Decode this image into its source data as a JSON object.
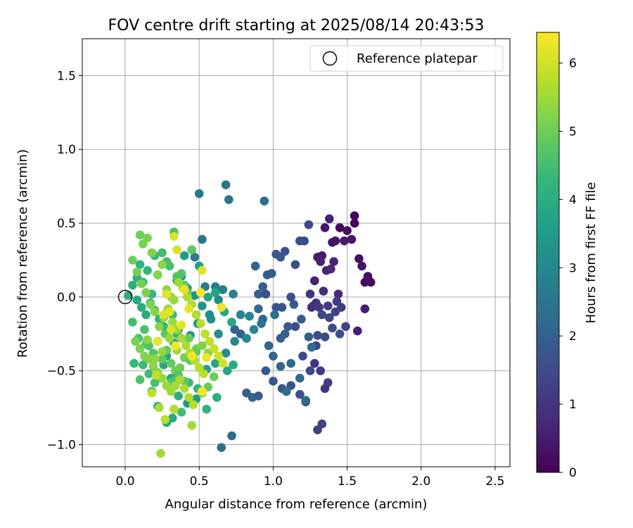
{
  "chart_data": {
    "type": "scatter",
    "title": "FOV centre drift starting at 2025/08/14 20:43:53",
    "xlabel": "Angular distance from reference (arcmin)",
    "ylabel": "Rotation from reference (arcmin)",
    "xlim": [
      -0.29,
      2.6
    ],
    "ylim": [
      -1.15,
      1.75
    ],
    "xticks": [
      0.0,
      0.5,
      1.0,
      1.5,
      2.0,
      2.5
    ],
    "xtick_labels": [
      "0.0",
      "0.5",
      "1.0",
      "1.5",
      "2.0",
      "2.5"
    ],
    "yticks": [
      -1.0,
      -0.5,
      0.0,
      0.5,
      1.0,
      1.5
    ],
    "ytick_labels": [
      "−1.0",
      "−0.5",
      "0.0",
      "0.5",
      "1.0",
      "1.5"
    ],
    "grid": true,
    "legend": {
      "placement": "top-right",
      "entries": [
        "Reference platepar"
      ]
    },
    "reference_point": {
      "x": 0.0,
      "y": 0.0
    },
    "colorbar": {
      "label": "Hours from first FF file",
      "colormap": "viridis",
      "range": [
        0,
        6.45
      ],
      "ticks": [
        0,
        1,
        2,
        3,
        4,
        5,
        6
      ],
      "tick_labels": [
        "0",
        "1",
        "2",
        "3",
        "4",
        "5",
        "6"
      ],
      "stops": [
        "#440154",
        "#482878",
        "#3e4989",
        "#31688e",
        "#26828e",
        "#1f9e89",
        "#35b779",
        "#6ece58",
        "#b5de2b",
        "#fde725"
      ]
    },
    "series": [
      {
        "x": [
          1.55,
          1.62,
          1.66,
          1.58,
          1.64,
          1.6,
          1.55,
          1.5,
          1.53,
          1.48,
          1.62,
          1.57,
          1.45,
          1.42,
          1.4,
          1.38,
          1.35,
          1.33,
          1.3,
          1.28,
          1.32,
          1.36,
          1.41,
          1.44,
          1.39,
          1.34,
          1.29,
          1.25,
          1.27,
          1.31,
          1.37,
          1.43,
          1.46,
          1.49,
          1.42,
          1.38,
          1.33,
          1.3,
          1.35,
          1.4,
          1.45,
          1.35,
          1.28,
          1.32,
          1.37,
          1.3,
          1.33,
          1.29,
          1.22,
          1.26
        ],
        "y": [
          0.55,
          0.1,
          0.1,
          0.26,
          0.14,
          0.21,
          0.5,
          0.45,
          0.39,
          0.38,
          -0.08,
          -0.23,
          0.47,
          0.38,
          0.37,
          0.53,
          0.47,
          0.28,
          0.27,
          0.11,
          0.24,
          0.18,
          0.24,
          0.02,
          0.19,
          0.04,
          -0.04,
          0.02,
          -0.06,
          -0.07,
          -0.06,
          -0.03,
          -0.07,
          -0.2,
          -0.1,
          -0.14,
          -0.12,
          -0.26,
          -0.27,
          -0.21,
          -0.25,
          -0.62,
          -0.45,
          -0.5,
          -0.58,
          -0.9,
          -0.86,
          -0.33,
          -0.71,
          -0.07
        ],
        "hours": [
          0.05,
          0.15,
          0.2,
          0.25,
          0.3,
          0.35,
          0.12,
          0.18,
          0.4,
          0.45,
          0.5,
          0.55,
          0.1,
          0.3,
          0.35,
          0.6,
          0.4,
          0.45,
          0.5,
          0.55,
          0.6,
          0.65,
          0.7,
          0.75,
          0.8,
          0.85,
          0.9,
          0.95,
          1.0,
          1.05,
          1.1,
          1.15,
          1.2,
          1.25,
          1.3,
          1.35,
          1.4,
          1.45,
          1.5,
          1.55,
          1.6,
          1.0,
          1.05,
          1.1,
          1.15,
          1.2,
          1.25,
          1.3,
          1.35,
          0.9
        ]
      },
      {
        "x": [
          1.24,
          1.21,
          1.18,
          1.15,
          1.12,
          1.08,
          1.05,
          1.02,
          0.99,
          0.96,
          0.93,
          0.9,
          0.88,
          0.95,
          1.02,
          1.06,
          1.1,
          1.14,
          1.19,
          1.24,
          1.08,
          1.05,
          1.0,
          0.97,
          0.93,
          0.9,
          1.15,
          1.2,
          1.25,
          1.18,
          1.12,
          1.06,
          1.0,
          0.95,
          0.9,
          0.86,
          0.82,
          0.78,
          0.74,
          1.05,
          1.12,
          1.18,
          1.22,
          1.26,
          1.09,
          1.01,
          0.92
        ],
        "y": [
          0.49,
          0.38,
          0.38,
          0.22,
          0.0,
          0.31,
          0.27,
          0.29,
          0.16,
          0.15,
          0.07,
          0.02,
          0.21,
          0.02,
          -0.07,
          -0.07,
          -0.2,
          -0.05,
          -0.15,
          -0.27,
          -0.25,
          -0.28,
          -0.4,
          -0.33,
          -0.15,
          -0.08,
          -0.2,
          -0.4,
          -0.5,
          -0.66,
          -0.6,
          -0.62,
          -0.57,
          -0.5,
          -0.67,
          -0.68,
          -0.65,
          -0.25,
          -0.22,
          -0.47,
          -0.45,
          -0.55,
          -0.7,
          -0.34,
          -0.64,
          -0.12,
          -0.18
        ],
        "hours": [
          1.4,
          1.45,
          1.5,
          1.55,
          1.6,
          1.65,
          1.7,
          1.75,
          1.8,
          1.85,
          1.9,
          1.95,
          2.0,
          1.6,
          1.65,
          1.7,
          1.75,
          1.8,
          1.85,
          1.9,
          1.95,
          2.0,
          2.05,
          2.1,
          2.15,
          2.2,
          1.55,
          1.5,
          1.45,
          1.6,
          1.65,
          1.7,
          1.75,
          1.8,
          1.85,
          1.9,
          1.95,
          2.0,
          2.05,
          2.1,
          2.15,
          2.2,
          2.25,
          2.3,
          2.35,
          2.4,
          2.45
        ]
      },
      {
        "x": [
          0.94,
          0.68,
          0.7,
          0.5,
          0.52,
          0.47,
          0.54,
          0.61,
          0.66,
          0.73,
          0.78,
          0.84,
          0.87,
          0.82,
          0.74,
          0.68,
          0.63,
          0.58,
          0.52,
          0.47,
          0.42,
          0.38,
          0.35,
          0.4,
          0.45,
          0.5,
          0.56,
          0.61,
          0.67,
          0.72,
          0.63,
          0.57,
          0.49,
          0.44,
          0.36,
          0.33,
          0.28,
          0.26,
          0.31,
          0.36,
          0.42,
          0.48,
          0.55,
          0.61,
          0.69,
          0.73,
          0.62,
          0.55,
          0.49,
          0.43,
          0.38
        ],
        "y": [
          0.65,
          0.76,
          0.66,
          0.7,
          0.39,
          0.27,
          0.07,
          0.07,
          0.05,
          0.02,
          -0.12,
          -0.13,
          -0.22,
          -0.28,
          -0.3,
          -0.38,
          -0.25,
          -0.15,
          -0.06,
          0.01,
          0.06,
          0.14,
          0.11,
          0.28,
          0.32,
          0.21,
          0.0,
          0.03,
          -0.1,
          -0.17,
          -0.02,
          -0.12,
          -0.18,
          -0.26,
          -0.22,
          -0.31,
          -0.4,
          -0.46,
          -0.55,
          -0.67,
          -0.72,
          -0.69,
          -0.49,
          -0.45,
          -0.5,
          -0.46,
          -0.68,
          -0.76,
          -0.62,
          -0.58,
          -0.78
        ],
        "hours": [
          2.3,
          2.45,
          2.5,
          2.55,
          2.6,
          2.65,
          2.7,
          2.75,
          2.8,
          2.85,
          2.9,
          2.95,
          3.0,
          3.05,
          3.1,
          3.15,
          3.2,
          3.25,
          3.3,
          3.35,
          3.4,
          3.45,
          3.5,
          3.55,
          3.6,
          3.65,
          3.7,
          3.75,
          3.8,
          3.85,
          3.1,
          3.2,
          3.3,
          3.4,
          3.5,
          3.6,
          3.7,
          3.8,
          3.9,
          4.0,
          3.45,
          3.55,
          3.65,
          3.75,
          3.85,
          3.95,
          4.05,
          4.15,
          4.25,
          4.35,
          4.45
        ]
      },
      {
        "x": [
          0.65,
          0.72,
          0.02,
          0.05,
          0.08,
          0.1,
          0.12,
          0.15,
          0.18,
          0.2,
          0.22,
          0.25,
          0.28,
          0.3,
          0.33,
          0.35,
          0.38,
          0.4,
          0.42,
          0.45,
          0.08,
          0.11,
          0.14,
          0.17,
          0.2,
          0.23,
          0.26,
          0.29,
          0.32,
          0.35,
          0.05,
          0.09,
          0.13,
          0.16,
          0.19,
          0.22,
          0.25,
          0.28,
          0.31,
          0.34,
          0.37,
          0.4,
          0.44,
          0.48,
          0.52,
          0.56,
          0.12,
          0.16,
          0.2,
          0.24,
          0.28,
          0.32,
          0.36,
          0.4,
          0.44,
          0.48,
          0.52,
          0.56,
          0.6,
          0.28,
          0.32,
          0.22,
          0.1,
          0.06,
          0.18,
          0.14,
          0.27,
          0.35,
          0.43
        ],
        "y": [
          -1.02,
          -0.94,
          0.01,
          0.08,
          0.13,
          0.22,
          0.1,
          0.18,
          0.02,
          0.28,
          0.15,
          0.3,
          0.24,
          0.21,
          0.44,
          0.14,
          0.16,
          0.08,
          0.03,
          0.32,
          -0.02,
          -0.07,
          -0.12,
          -0.04,
          -0.09,
          -0.15,
          -0.2,
          -0.08,
          -0.12,
          -0.25,
          -0.17,
          -0.28,
          -0.22,
          -0.33,
          -0.38,
          -0.3,
          -0.42,
          -0.36,
          -0.45,
          -0.5,
          -0.48,
          -0.41,
          -0.4,
          -0.35,
          -0.33,
          -0.38,
          -0.46,
          -0.52,
          -0.58,
          -0.55,
          -0.6,
          -0.57,
          -0.53,
          -0.57,
          -0.43,
          -0.37,
          -0.65,
          -0.61,
          -0.54,
          -0.85,
          -0.82,
          -0.74,
          -0.56,
          -0.45,
          -0.64,
          -0.32,
          -0.25,
          -0.22,
          -0.28
        ],
        "hours": [
          2.3,
          2.35,
          4.0,
          4.05,
          4.1,
          4.15,
          4.2,
          4.25,
          4.3,
          4.35,
          4.4,
          4.45,
          4.5,
          4.55,
          4.6,
          4.65,
          4.7,
          4.75,
          4.8,
          4.85,
          3.9,
          3.95,
          4.0,
          4.05,
          4.1,
          4.15,
          4.2,
          4.25,
          4.3,
          4.35,
          4.5,
          4.55,
          4.6,
          4.65,
          4.7,
          4.75,
          4.8,
          4.85,
          4.9,
          4.95,
          5.0,
          5.05,
          5.1,
          5.15,
          5.2,
          5.25,
          4.4,
          4.45,
          4.5,
          4.55,
          4.6,
          4.65,
          4.7,
          4.75,
          4.8,
          4.85,
          4.9,
          4.95,
          5.0,
          3.8,
          3.9,
          4.0,
          4.6,
          4.3,
          4.2,
          4.7,
          4.8,
          4.9,
          5.0
        ]
      },
      {
        "x": [
          0.1,
          0.12,
          0.15,
          0.18,
          0.22,
          0.25,
          0.28,
          0.31,
          0.33,
          0.36,
          0.39,
          0.42,
          0.45,
          0.48,
          0.51,
          0.54,
          0.57,
          0.6,
          0.63,
          0.66,
          0.05,
          0.08,
          0.11,
          0.14,
          0.17,
          0.2,
          0.23,
          0.26,
          0.29,
          0.32,
          0.35,
          0.38,
          0.41,
          0.44,
          0.47,
          0.5,
          0.53,
          0.07,
          0.1,
          0.13,
          0.16,
          0.19,
          0.22,
          0.25,
          0.28,
          0.31,
          0.34,
          0.37,
          0.4,
          0.43,
          0.46,
          0.15,
          0.2,
          0.25,
          0.3,
          0.35,
          0.23,
          0.45,
          0.52,
          0.33,
          0.27,
          0.18,
          0.21,
          0.24
        ],
        "y": [
          0.42,
          0.36,
          0.4,
          0.3,
          0.15,
          0.22,
          0.05,
          0.0,
          -0.02,
          0.1,
          0.06,
          0.0,
          -0.05,
          -0.12,
          -0.18,
          -0.25,
          -0.3,
          -0.35,
          -0.4,
          -0.45,
          0.25,
          0.17,
          0.09,
          0.03,
          -0.05,
          -0.1,
          -0.2,
          -0.14,
          -0.08,
          -0.17,
          -0.22,
          -0.28,
          -0.33,
          -0.38,
          -0.43,
          -0.48,
          -0.52,
          -0.3,
          -0.35,
          -0.4,
          -0.42,
          -0.47,
          -0.51,
          -0.55,
          -0.6,
          -0.64,
          -0.6,
          -0.56,
          -0.62,
          -0.68,
          -0.73,
          -0.29,
          -0.42,
          -0.37,
          -0.28,
          -0.36,
          -0.75,
          -0.87,
          -0.64,
          -0.76,
          -0.83,
          -0.65,
          -0.53,
          -1.06
        ],
        "hours": [
          5.0,
          5.1,
          5.15,
          5.2,
          5.25,
          5.3,
          5.35,
          5.4,
          5.45,
          5.5,
          5.55,
          5.6,
          5.65,
          5.7,
          5.75,
          5.8,
          5.85,
          5.9,
          5.95,
          6.0,
          5.0,
          5.05,
          5.1,
          5.15,
          5.2,
          5.25,
          5.3,
          5.35,
          5.4,
          5.45,
          5.5,
          5.55,
          5.6,
          5.65,
          5.7,
          5.75,
          5.8,
          5.1,
          5.15,
          5.2,
          5.25,
          5.3,
          5.35,
          5.4,
          5.45,
          5.5,
          5.55,
          5.6,
          5.65,
          5.7,
          5.75,
          5.3,
          5.35,
          5.4,
          5.45,
          5.5,
          5.6,
          5.55,
          5.65,
          5.7,
          5.75,
          5.8,
          5.85,
          5.5
        ]
      },
      {
        "x": [
          0.33,
          0.52,
          0.4,
          0.65,
          0.51,
          0.35,
          0.28,
          0.3,
          0.22,
          0.55,
          0.45,
          0.52,
          0.31,
          0.26,
          0.38,
          0.43,
          0.34
        ],
        "y": [
          0.41,
          0.18,
          0.05,
          -0.07,
          0.03,
          0.32,
          0.02,
          -0.1,
          -0.3,
          -0.41,
          -0.4,
          -0.64,
          -0.22,
          -0.12,
          -0.19,
          -0.08,
          -0.33
        ],
        "hours": [
          6.1,
          6.2,
          6.25,
          6.3,
          6.35,
          6.05,
          6.15,
          6.2,
          6.25,
          6.3,
          6.35,
          6.4,
          6.1,
          6.15,
          6.2,
          6.25,
          6.3
        ]
      }
    ]
  }
}
